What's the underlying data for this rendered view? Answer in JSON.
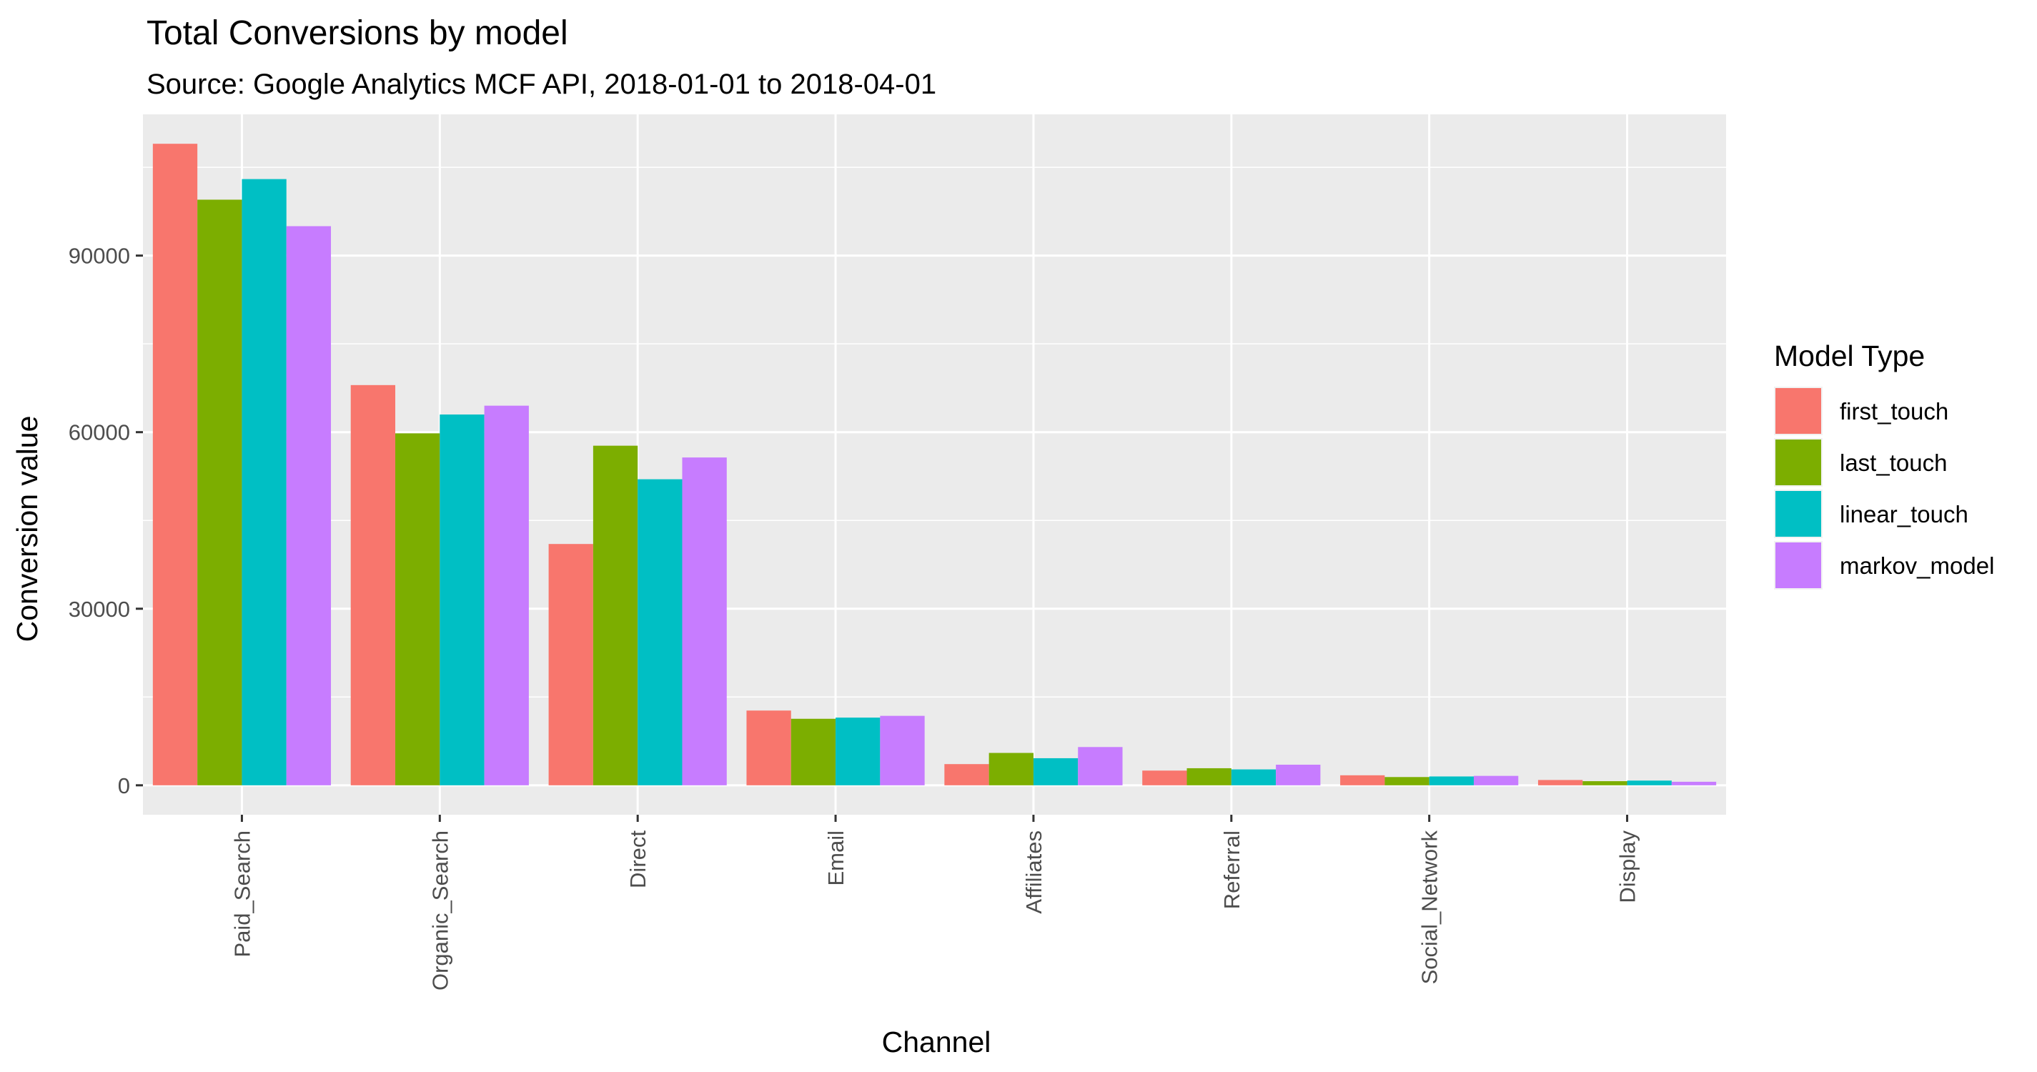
{
  "chart_data": {
    "type": "bar",
    "title": "Total Conversions by model",
    "subtitle": "Source: Google Analytics MCF API, 2018-01-01 to 2018-04-01",
    "xlabel": "Channel",
    "ylabel": "Conversion value",
    "legend_title": "Model Type",
    "legend_position": "right",
    "grid": true,
    "ylim": [
      -5000,
      114000
    ],
    "yticks": [
      0,
      30000,
      60000,
      90000
    ],
    "ytick_labels": [
      "0",
      "30000",
      "60000",
      "90000"
    ],
    "categories": [
      "Paid_Search",
      "Organic_Search",
      "Direct",
      "Email",
      "Affiliates",
      "Referral",
      "Social_Network",
      "Display"
    ],
    "series": [
      {
        "name": "first_touch",
        "color": "#F8766D",
        "values": [
          109000,
          68000,
          41000,
          12700,
          3600,
          2500,
          1700,
          900
        ]
      },
      {
        "name": "last_touch",
        "color": "#7CAE00",
        "values": [
          99500,
          59800,
          57700,
          11300,
          5500,
          2900,
          1400,
          700
        ]
      },
      {
        "name": "linear_touch",
        "color": "#00BFC4",
        "values": [
          103000,
          63000,
          52000,
          11500,
          4600,
          2700,
          1500,
          800
        ]
      },
      {
        "name": "markov_model",
        "color": "#C77CFF",
        "values": [
          95000,
          64500,
          55700,
          11800,
          6500,
          3500,
          1600,
          600
        ]
      }
    ]
  }
}
